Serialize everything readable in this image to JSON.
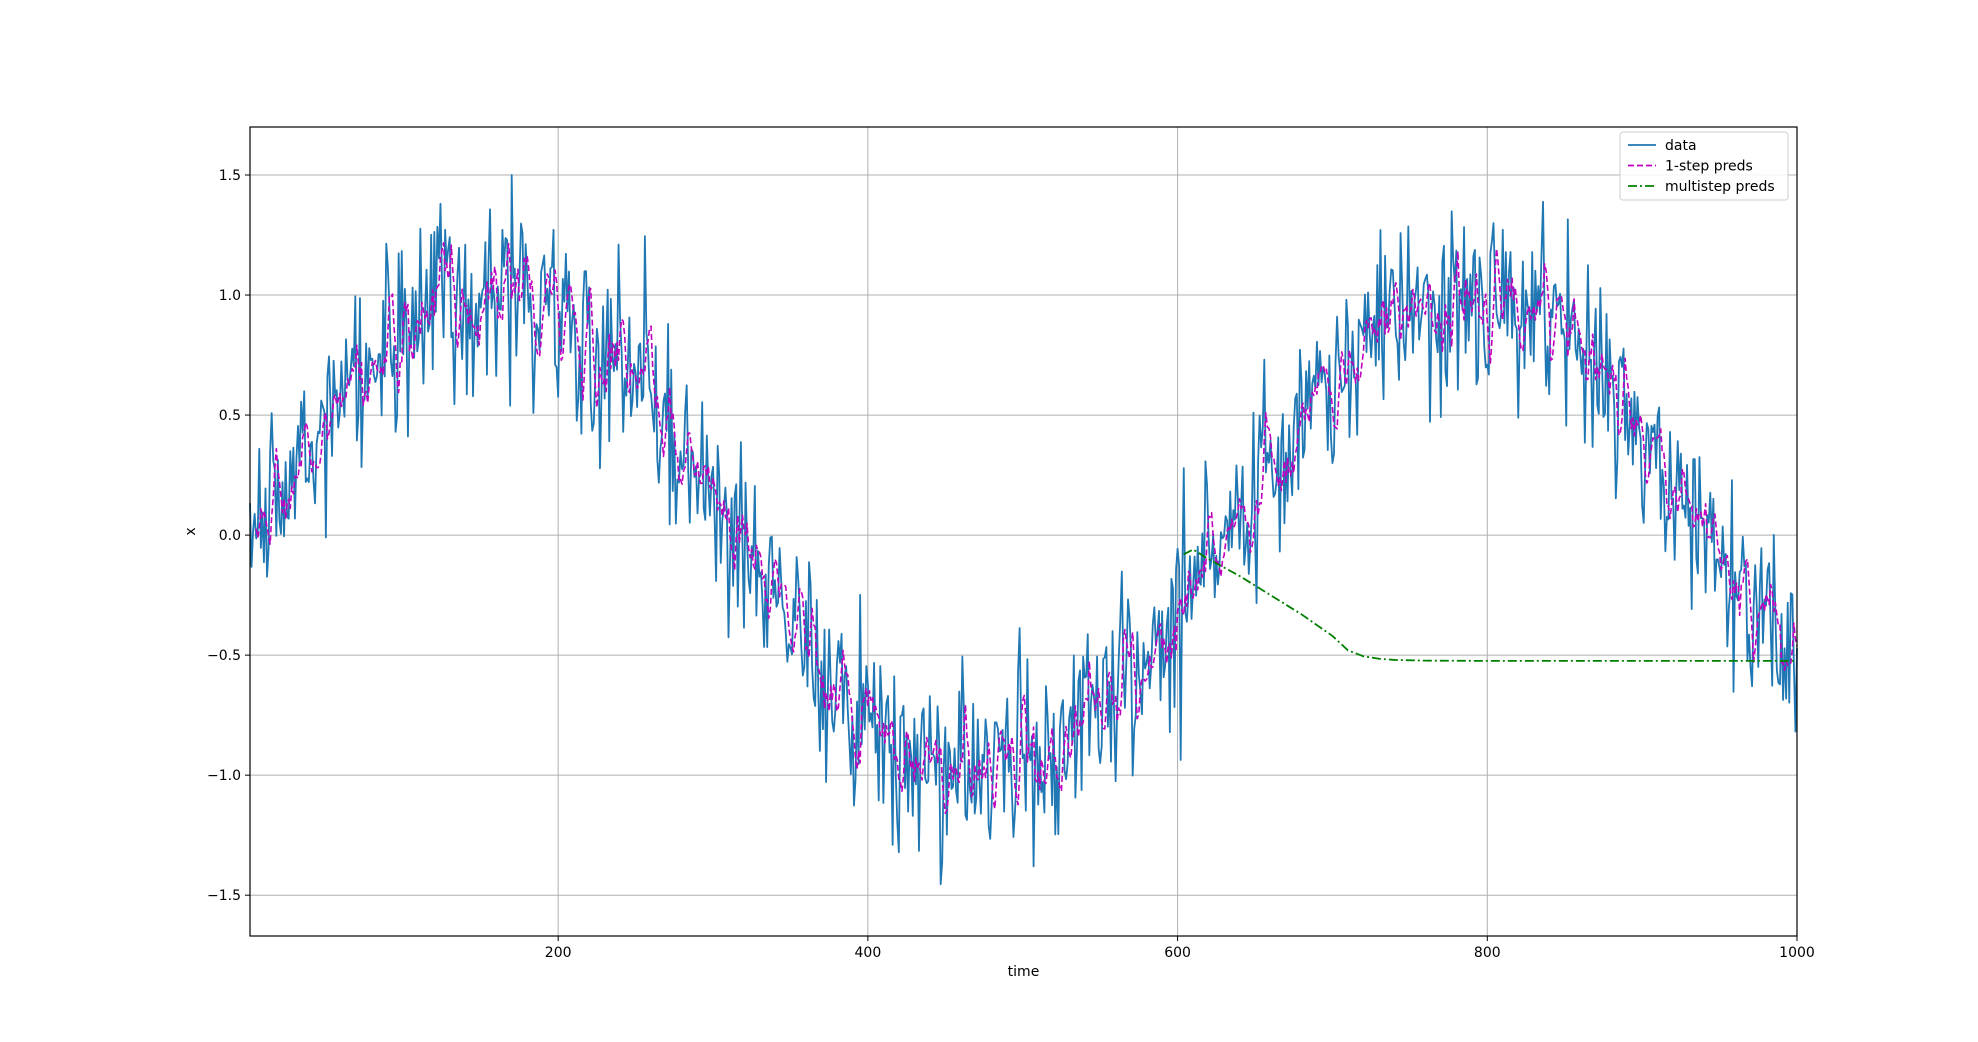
{
  "chart_data": {
    "type": "line",
    "title": "",
    "xlabel": "time",
    "ylabel": "x",
    "xlim": [
      1,
      1000
    ],
    "ylim": [
      -1.67,
      1.7
    ],
    "grid": true,
    "legend_position": "top-right",
    "xticks": [
      200,
      400,
      600,
      800,
      1000
    ],
    "yticks": [
      -1.5,
      -1.0,
      -0.5,
      0.0,
      0.5,
      1.0,
      1.5
    ],
    "xtick_labels": [
      "200",
      "400",
      "600",
      "800",
      "1000"
    ],
    "ytick_labels": [
      "−1.5",
      "−1.0",
      "−0.5",
      "0.0",
      "0.5",
      "1.0",
      "1.5"
    ],
    "series": [
      {
        "name": "data",
        "color": "#1f77b4",
        "style": "solid",
        "underlying": "sin(0.01*t)",
        "noise_sd": 0.2,
        "x_start": 1,
        "x_end": 1000
      },
      {
        "name": "1-step preds",
        "color": "#bf00bf",
        "style": "dashed",
        "x_start": 5,
        "x_end": 1000
      },
      {
        "name": "multistep preds",
        "color": "#008000",
        "style": "dashdot",
        "x": [
          604,
          610,
          620,
          640,
          660,
          680,
          700,
          710,
          720,
          730,
          740,
          760,
          800,
          850,
          900,
          950,
          1000
        ],
        "values": [
          -0.08,
          -0.06,
          -0.1,
          -0.17,
          -0.25,
          -0.33,
          -0.42,
          -0.48,
          -0.505,
          -0.515,
          -0.52,
          -0.523,
          -0.524,
          -0.524,
          -0.524,
          -0.524,
          -0.524
        ]
      }
    ]
  }
}
